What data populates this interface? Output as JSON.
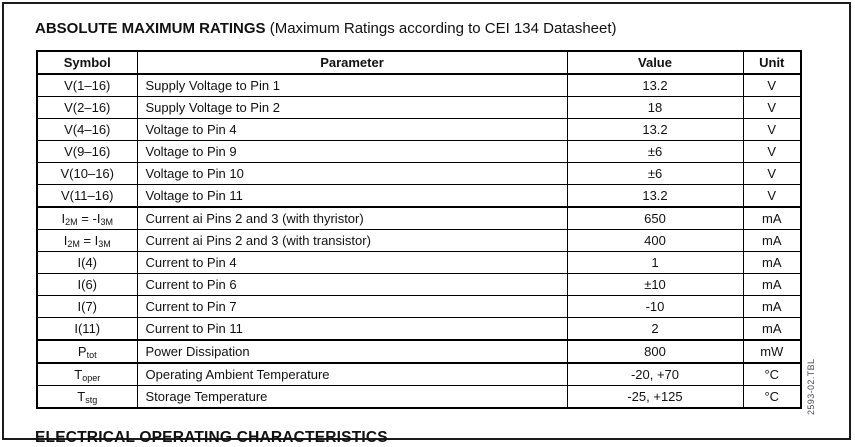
{
  "page": {
    "title_bold": "ABSOLUTE MAXIMUM RATINGS",
    "title_note": " (Maximum Ratings according to CEI 134 Datasheet)",
    "figure_code": "2593-02.TBL",
    "next_section_title": "ELECTRICAL OPERATING CHARACTERISTICS"
  },
  "table": {
    "headers": [
      "Symbol",
      "Parameter",
      "Value",
      "Unit"
    ],
    "rows": [
      {
        "symbol": "V(1–16)",
        "parameter": "Supply Voltage to Pin 1",
        "value": "13.2",
        "unit": "V"
      },
      {
        "symbol": "V(2–16)",
        "parameter": "Supply Voltage to Pin 2",
        "value": "18",
        "unit": "V"
      },
      {
        "symbol": "V(4–16)",
        "parameter": "Voltage to Pin 4",
        "value": "13.2",
        "unit": "V"
      },
      {
        "symbol": "V(9–16)",
        "parameter": "Voltage to Pin 9",
        "value": "±6",
        "unit": "V"
      },
      {
        "symbol": "V(10–16)",
        "parameter": "Voltage to Pin 10",
        "value": "±6",
        "unit": "V"
      },
      {
        "symbol": "V(11–16)",
        "parameter": "Voltage to Pin 11",
        "value": "13.2",
        "unit": "V",
        "group_end": true
      },
      {
        "symbol": "I~2M~ = -I~3M~",
        "parameter": "Current ai Pins 2 and 3 (with thyristor)",
        "value": "650",
        "unit": "mA"
      },
      {
        "symbol": "I~2M~ = I~3M~",
        "parameter": "Current ai Pins 2 and 3 (with transistor)",
        "value": "400",
        "unit": "mA"
      },
      {
        "symbol": "I(4)",
        "parameter": "Current to Pin 4",
        "value": "1",
        "unit": "mA"
      },
      {
        "symbol": "I(6)",
        "parameter": "Current to Pin 6",
        "value": "±10",
        "unit": "mA"
      },
      {
        "symbol": "I(7)",
        "parameter": "Current to Pin 7",
        "value": "-10",
        "unit": "mA"
      },
      {
        "symbol": "I(11)",
        "parameter": "Current to Pin 11",
        "value": "2",
        "unit": "mA",
        "group_end": true
      },
      {
        "symbol": "P~tot~",
        "parameter": "Power Dissipation",
        "value": "800",
        "unit": "mW",
        "group_end": true
      },
      {
        "symbol": "T~oper~",
        "parameter": "Operating Ambient Temperature",
        "value": "-20, +70",
        "unit": "°C"
      },
      {
        "symbol": "T~stg~",
        "parameter": "Storage Temperature",
        "value": "-25, +125",
        "unit": "°C"
      }
    ]
  }
}
